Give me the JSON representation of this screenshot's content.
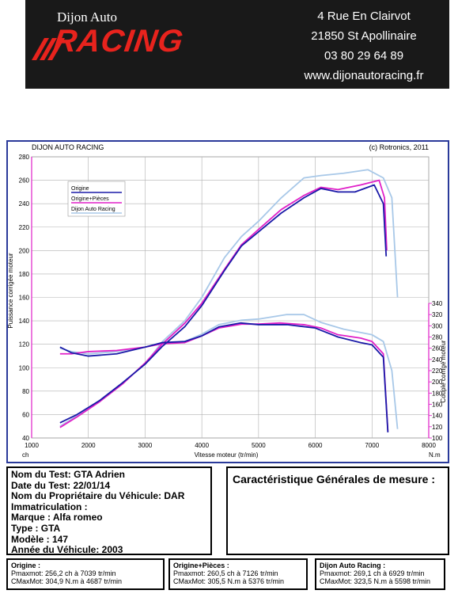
{
  "header": {
    "logo_top": "Dijon Auto",
    "logo_racing": "RACING",
    "address1": "4 Rue En Clairvot",
    "address2": "21850 St Apollinaire",
    "phone": "03 80 29 64 89",
    "website": "www.dijonautoracing.fr",
    "accent_color": "#e8231d",
    "background_color": "#191919"
  },
  "chart_data": {
    "type": "line",
    "title": "DIJON AUTO RACING",
    "copyright": "(c) Rotronics, 2011",
    "xlabel": "Vitesse moteur (tr/min)",
    "xunit_left": "ch",
    "xunit_right": "N.m",
    "ylabel_left": "Puissance corrigée moteur",
    "ylabel_right": "Couple corrigé moteur",
    "xlim": [
      1000,
      8000
    ],
    "ylim_left": [
      40,
      280
    ],
    "ylim_right": [
      100,
      340
    ],
    "x_ticks": [
      1000,
      2000,
      3000,
      4000,
      5000,
      6000,
      7000,
      8000
    ],
    "y_ticks_left": [
      40,
      60,
      80,
      100,
      120,
      140,
      160,
      180,
      200,
      220,
      240,
      260,
      280
    ],
    "y_ticks_right": [
      100,
      120,
      140,
      160,
      180,
      200,
      220,
      240,
      260,
      280,
      300,
      320,
      340
    ],
    "grid": true,
    "legend_position": "top-left",
    "series": [
      {
        "name": "Origine",
        "color": "#1a1aa8",
        "power": {
          "x": [
            1500,
            1800,
            2200,
            2600,
            3000,
            3300,
            3700,
            4000,
            4400,
            4700,
            5000,
            5400,
            5800,
            6100,
            6400,
            6700,
            7039,
            7200,
            7250
          ],
          "y": [
            53,
            60,
            72,
            87,
            103,
            118,
            135,
            153,
            183,
            204,
            216,
            232,
            245,
            253,
            250,
            250,
            256,
            240,
            195
          ]
        },
        "torque": {
          "x": [
            1500,
            1700,
            2000,
            2500,
            3000,
            3300,
            3700,
            4000,
            4300,
            4687,
            5000,
            5500,
            6000,
            6400,
            6800,
            7000,
            7200,
            7280
          ],
          "y": [
            262,
            252,
            246,
            250,
            262,
            270,
            272,
            282,
            298,
            305,
            302,
            302,
            296,
            280,
            270,
            266,
            244,
            110
          ]
        }
      },
      {
        "name": "Origine+Pièces",
        "color": "#e020c8",
        "power": {
          "x": [
            1500,
            1800,
            2200,
            2600,
            3000,
            3300,
            3700,
            4000,
            4400,
            4700,
            5000,
            5400,
            5800,
            6100,
            6400,
            6800,
            7126,
            7220,
            7260
          ],
          "y": [
            49,
            58,
            71,
            86,
            104,
            120,
            138,
            155,
            184,
            205,
            218,
            235,
            247,
            254,
            252,
            256,
            260,
            245,
            200
          ]
        },
        "torque": {
          "x": [
            1500,
            1700,
            2000,
            2500,
            3000,
            3300,
            3700,
            4000,
            4300,
            4700,
            5000,
            5376,
            5800,
            6100,
            6400,
            6800,
            7000,
            7200,
            7280
          ],
          "y": [
            250,
            250,
            254,
            256,
            262,
            268,
            270,
            282,
            296,
            303,
            303,
            305,
            302,
            296,
            284,
            278,
            272,
            250,
            112
          ]
        }
      },
      {
        "name": "Dijon Auto Racing",
        "color": "#a8c8e8",
        "power": {
          "x": [
            1500,
            1800,
            2200,
            2600,
            3000,
            3300,
            3700,
            4000,
            4400,
            4700,
            5000,
            5400,
            5800,
            6100,
            6500,
            6929,
            7200,
            7350,
            7450
          ],
          "y": [
            50,
            59,
            72,
            87,
            103,
            122,
            140,
            160,
            194,
            212,
            225,
            245,
            262,
            264,
            266,
            269,
            262,
            245,
            160
          ]
        },
        "torque": {
          "x": [
            1500,
            1700,
            2000,
            2500,
            3000,
            3300,
            3700,
            4000,
            4300,
            4700,
            5000,
            5500,
            5800,
            6100,
            6500,
            7000,
            7200,
            7350,
            7450
          ],
          "y": [
            260,
            254,
            250,
            254,
            262,
            268,
            272,
            285,
            302,
            310,
            312,
            320,
            320,
            306,
            294,
            284,
            272,
            220,
            116
          ]
        }
      }
    ]
  },
  "test_info": {
    "lines": [
      "Nom du Test: GTA Adrien",
      "Date du Test: 22/01/14",
      "Nom du Propriétaire du Véhicule: DAR",
      "Immatriculation  :",
      "Marque  : Alfa romeo",
      "Type  : GTA",
      "Modèle  : 147",
      "Année du Véhicule: 2003"
    ]
  },
  "measurement": {
    "title": "Caractéristique Générales de mesure :"
  },
  "summaries": [
    {
      "title": "Origine :",
      "pmax": "Pmaxmot: 256,2 ch à 7039 tr/min",
      "cmax": "CMaxMot: 304,9 N.m à 4687 tr/min"
    },
    {
      "title": "Origine+Pièces :",
      "pmax": "Pmaxmot: 260,5 ch à 7126 tr/min",
      "cmax": "CMaxMot: 305,5 N.m à 5376 tr/min"
    },
    {
      "title": "Dijon Auto Racing :",
      "pmax": "Pmaxmot: 269,1 ch à 6929 tr/min",
      "cmax": "CMaxMot: 323,5 N.m à 5598 tr/min"
    }
  ]
}
